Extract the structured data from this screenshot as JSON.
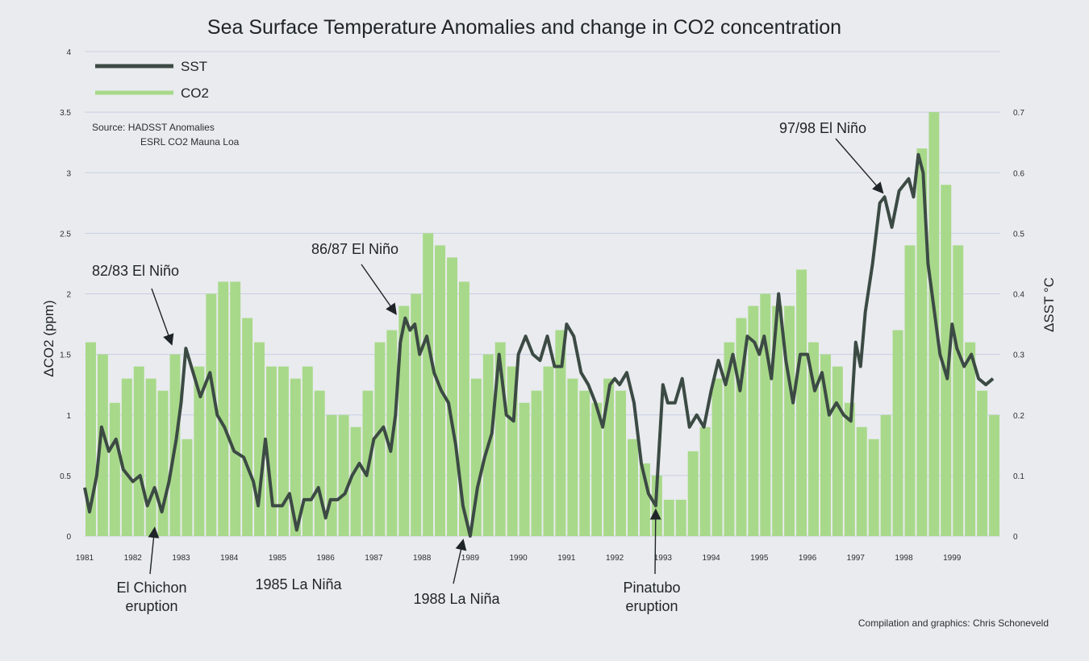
{
  "chart_data": {
    "type": "bar+line",
    "title": "Sea Surface Temperature Anomalies and change in CO2 concentration",
    "y_left_label": "ΔCO2 (ppm)",
    "y_right_label": "ΔSST °C",
    "ylim_left": [
      0,
      4
    ],
    "ylim_right": [
      0,
      0.8
    ],
    "y_left_ticks": [
      "0",
      "0.5",
      "1",
      "1.5",
      "2",
      "2.5",
      "3",
      "3.5",
      "4"
    ],
    "y_right_ticks": [
      "0",
      "0.1",
      "0.2",
      "0.3",
      "0.4",
      "0.5",
      "0.6",
      "0.7"
    ],
    "x_ticks": [
      "1981",
      "1982",
      "1983",
      "1984",
      "1985",
      "1986",
      "1987",
      "1988",
      "1989",
      "1990",
      "1991",
      "1992",
      "1993",
      "1994",
      "1995",
      "1996",
      "1997",
      "1998",
      "1999"
    ],
    "grid": "horizontal",
    "legend": {
      "placement": "top-left",
      "items": [
        {
          "label": "SST",
          "color": "#3c4a44"
        },
        {
          "label": "CO2",
          "color": "#a8d98a"
        }
      ]
    },
    "source_lines": [
      "Source: HADSST Anomalies",
      "ESRL CO2 Mauna Loa"
    ],
    "credit": "Compilation and graphics: Chris Schoneveld",
    "series": [
      {
        "name": "CO2",
        "axis": "left",
        "style": "bars",
        "color": "#a8d98a",
        "x": [
          1981.0,
          1981.25,
          1981.5,
          1981.75,
          1982.0,
          1982.25,
          1982.5,
          1982.75,
          1983.0,
          1983.25,
          1983.5,
          1983.75,
          1984.0,
          1984.25,
          1984.5,
          1984.75,
          1985.0,
          1985.25,
          1985.5,
          1985.75,
          1986.0,
          1986.25,
          1986.5,
          1986.75,
          1987.0,
          1987.25,
          1987.5,
          1987.75,
          1988.0,
          1988.25,
          1988.5,
          1988.75,
          1989.0,
          1989.25,
          1989.5,
          1989.75,
          1990.0,
          1990.25,
          1990.5,
          1990.75,
          1991.0,
          1991.25,
          1991.5,
          1991.75,
          1992.0,
          1992.25,
          1992.5,
          1992.75,
          1993.0,
          1993.25,
          1993.5,
          1993.75,
          1994.0,
          1994.25,
          1994.5,
          1994.75,
          1995.0,
          1995.25,
          1995.5,
          1995.75,
          1996.0,
          1996.25,
          1996.5,
          1996.75,
          1997.0,
          1997.25,
          1997.5,
          1997.75,
          1998.0,
          1998.25,
          1998.5,
          1998.75,
          1999.0,
          1999.25,
          1999.5,
          1999.75
        ],
        "values": [
          1.6,
          1.5,
          1.1,
          1.3,
          1.4,
          1.3,
          1.2,
          1.5,
          0.8,
          1.4,
          2.0,
          2.1,
          2.1,
          1.8,
          1.6,
          1.4,
          1.4,
          1.3,
          1.4,
          1.2,
          1.0,
          1.0,
          0.9,
          1.2,
          1.6,
          1.7,
          1.9,
          2.0,
          2.5,
          2.4,
          2.3,
          2.1,
          1.3,
          1.5,
          1.6,
          1.4,
          1.1,
          1.2,
          1.4,
          1.7,
          1.3,
          1.2,
          1.1,
          1.3,
          1.2,
          0.8,
          0.6,
          0.5,
          0.3,
          0.3,
          0.7,
          0.9,
          1.3,
          1.6,
          1.8,
          1.9,
          2.0,
          1.9,
          1.9,
          2.2,
          1.6,
          1.5,
          1.4,
          1.1,
          0.9,
          0.8,
          1.0,
          1.7,
          2.4,
          3.2,
          3.5,
          2.9,
          2.4,
          1.6,
          1.2,
          1.0
        ]
      },
      {
        "name": "SST",
        "axis": "right",
        "style": "line",
        "color": "#3c4a44",
        "x": [
          1981.0,
          1981.1,
          1981.25,
          1981.35,
          1981.5,
          1981.65,
          1981.8,
          1982.0,
          1982.15,
          1982.3,
          1982.45,
          1982.6,
          1982.75,
          1982.9,
          1983.0,
          1983.1,
          1983.25,
          1983.4,
          1983.5,
          1983.6,
          1983.75,
          1983.9,
          1984.1,
          1984.3,
          1984.5,
          1984.6,
          1984.75,
          1984.9,
          1985.1,
          1985.25,
          1985.4,
          1985.55,
          1985.7,
          1985.85,
          1986.0,
          1986.1,
          1986.25,
          1986.4,
          1986.55,
          1986.7,
          1986.85,
          1987.0,
          1987.2,
          1987.35,
          1987.45,
          1987.55,
          1987.65,
          1987.75,
          1987.85,
          1987.95,
          1988.1,
          1988.25,
          1988.4,
          1988.55,
          1988.7,
          1988.85,
          1989.0,
          1989.15,
          1989.3,
          1989.45,
          1989.6,
          1989.75,
          1989.9,
          1990.0,
          1990.15,
          1990.3,
          1990.45,
          1990.6,
          1990.75,
          1990.9,
          1991.0,
          1991.15,
          1991.3,
          1991.45,
          1991.6,
          1991.75,
          1991.9,
          1992.0,
          1992.1,
          1992.25,
          1992.4,
          1992.55,
          1992.7,
          1992.85,
          1993.0,
          1993.1,
          1993.25,
          1993.4,
          1993.55,
          1993.7,
          1993.85,
          1994.0,
          1994.15,
          1994.3,
          1994.45,
          1994.6,
          1994.75,
          1994.9,
          1995.0,
          1995.1,
          1995.25,
          1995.4,
          1995.55,
          1995.7,
          1995.85,
          1996.0,
          1996.15,
          1996.3,
          1996.45,
          1996.6,
          1996.75,
          1996.9,
          1997.0,
          1997.1,
          1997.2,
          1997.35,
          1997.5,
          1997.6,
          1997.75,
          1997.9,
          1998.0,
          1998.1,
          1998.2,
          1998.3,
          1998.4,
          1998.5,
          1998.6,
          1998.75,
          1998.9,
          1999.0,
          1999.1,
          1999.25,
          1999.4,
          1999.55,
          1999.7,
          1999.85
        ],
        "values": [
          0.08,
          0.04,
          0.1,
          0.18,
          0.14,
          0.16,
          0.11,
          0.09,
          0.1,
          0.05,
          0.08,
          0.04,
          0.09,
          0.16,
          0.22,
          0.31,
          0.27,
          0.23,
          0.25,
          0.27,
          0.2,
          0.18,
          0.14,
          0.13,
          0.09,
          0.05,
          0.16,
          0.05,
          0.05,
          0.07,
          0.01,
          0.06,
          0.06,
          0.08,
          0.03,
          0.06,
          0.06,
          0.07,
          0.1,
          0.12,
          0.1,
          0.16,
          0.18,
          0.14,
          0.2,
          0.32,
          0.36,
          0.34,
          0.35,
          0.3,
          0.33,
          0.27,
          0.24,
          0.22,
          0.15,
          0.05,
          0.0,
          0.08,
          0.13,
          0.17,
          0.3,
          0.2,
          0.19,
          0.3,
          0.33,
          0.3,
          0.29,
          0.33,
          0.28,
          0.28,
          0.35,
          0.33,
          0.27,
          0.25,
          0.22,
          0.18,
          0.25,
          0.26,
          0.25,
          0.27,
          0.22,
          0.12,
          0.07,
          0.05,
          0.25,
          0.22,
          0.22,
          0.26,
          0.18,
          0.2,
          0.18,
          0.24,
          0.29,
          0.25,
          0.3,
          0.24,
          0.33,
          0.32,
          0.3,
          0.33,
          0.26,
          0.4,
          0.29,
          0.22,
          0.3,
          0.3,
          0.24,
          0.27,
          0.2,
          0.22,
          0.2,
          0.19,
          0.32,
          0.28,
          0.37,
          0.45,
          0.55,
          0.56,
          0.51,
          0.57,
          0.58,
          0.59,
          0.56,
          0.63,
          0.6,
          0.45,
          0.39,
          0.3,
          0.26,
          0.35,
          0.31,
          0.28,
          0.3,
          0.26,
          0.25,
          0.26
        ]
      }
    ],
    "annotations": [
      {
        "lines": [
          "82/83 El Niño"
        ],
        "x": 1982.8,
        "value": 0.31
      },
      {
        "lines": [
          "86/87 El Niño"
        ],
        "x": 1987.45,
        "value": 0.36
      },
      {
        "lines": [
          "97/98 El Niño"
        ],
        "x": 1997.55,
        "value": 0.56
      },
      {
        "lines": [
          "El Chichon",
          "eruption"
        ],
        "x": 1982.45,
        "value": 0.02
      },
      {
        "lines": [
          "1985 La Niña"
        ],
        "x": 1985.3,
        "value": 0.0
      },
      {
        "lines": [
          "1988 La Niña"
        ],
        "x": 1988.85,
        "value": 0.0
      },
      {
        "lines": [
          "Pinatubo",
          "eruption"
        ],
        "x": 1992.85,
        "value": 0.05
      }
    ]
  }
}
